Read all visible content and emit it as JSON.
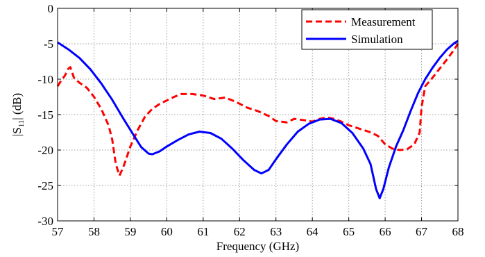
{
  "chart_data": {
    "type": "line",
    "xlabel": "Frequency (GHz)",
    "ylabel_main": "|S",
    "ylabel_sub": "11",
    "ylabel_tail": "| (dB)",
    "xlim": [
      57,
      68
    ],
    "ylim": [
      -30,
      0
    ],
    "xticks": [
      57,
      58,
      59,
      60,
      61,
      62,
      63,
      64,
      65,
      66,
      67,
      68
    ],
    "yticks": [
      0,
      -5,
      -10,
      -15,
      -20,
      -25,
      -30
    ],
    "grid": true,
    "legend_position": "top-right",
    "series": [
      {
        "name": "Measurement",
        "color": "#ff0000",
        "style": "dashed",
        "points": [
          [
            57.0,
            -11.0
          ],
          [
            57.1,
            -10.2
          ],
          [
            57.2,
            -9.5
          ],
          [
            57.3,
            -8.5
          ],
          [
            57.35,
            -8.3
          ],
          [
            57.45,
            -9.8
          ],
          [
            57.6,
            -10.5
          ],
          [
            57.8,
            -11.2
          ],
          [
            58.0,
            -12.5
          ],
          [
            58.2,
            -14.2
          ],
          [
            58.4,
            -16.5
          ],
          [
            58.5,
            -18.5
          ],
          [
            58.6,
            -22.0
          ],
          [
            58.7,
            -23.6
          ],
          [
            58.8,
            -22.5
          ],
          [
            58.9,
            -21.0
          ],
          [
            59.0,
            -19.5
          ],
          [
            59.2,
            -17.2
          ],
          [
            59.4,
            -15.3
          ],
          [
            59.6,
            -14.2
          ],
          [
            59.8,
            -13.5
          ],
          [
            60.0,
            -13.0
          ],
          [
            60.2,
            -12.5
          ],
          [
            60.4,
            -12.1
          ],
          [
            60.7,
            -12.1
          ],
          [
            61.0,
            -12.3
          ],
          [
            61.3,
            -12.8
          ],
          [
            61.6,
            -12.6
          ],
          [
            61.9,
            -13.2
          ],
          [
            62.2,
            -14.0
          ],
          [
            62.5,
            -14.5
          ],
          [
            62.8,
            -15.2
          ],
          [
            63.0,
            -15.9
          ],
          [
            63.3,
            -16.1
          ],
          [
            63.5,
            -15.6
          ],
          [
            63.8,
            -15.8
          ],
          [
            64.0,
            -16.0
          ],
          [
            64.2,
            -15.6
          ],
          [
            64.4,
            -15.4
          ],
          [
            64.6,
            -15.6
          ],
          [
            64.8,
            -16.0
          ],
          [
            65.0,
            -16.5
          ],
          [
            65.3,
            -17.0
          ],
          [
            65.6,
            -17.5
          ],
          [
            65.8,
            -18.0
          ],
          [
            66.0,
            -19.2
          ],
          [
            66.2,
            -19.8
          ],
          [
            66.4,
            -20.0
          ],
          [
            66.6,
            -19.9
          ],
          [
            66.8,
            -19.2
          ],
          [
            66.95,
            -17.5
          ],
          [
            67.0,
            -14.0
          ],
          [
            67.1,
            -11.0
          ],
          [
            67.3,
            -9.8
          ],
          [
            67.5,
            -8.5
          ],
          [
            67.7,
            -7.2
          ],
          [
            67.9,
            -5.8
          ],
          [
            68.0,
            -5.0
          ]
        ]
      },
      {
        "name": "Simulation",
        "color": "#0000ff",
        "style": "solid",
        "points": [
          [
            57.0,
            -4.8
          ],
          [
            57.3,
            -5.8
          ],
          [
            57.6,
            -7.0
          ],
          [
            57.9,
            -8.6
          ],
          [
            58.2,
            -10.6
          ],
          [
            58.5,
            -12.9
          ],
          [
            58.8,
            -15.5
          ],
          [
            59.1,
            -18.0
          ],
          [
            59.3,
            -19.6
          ],
          [
            59.5,
            -20.5
          ],
          [
            59.6,
            -20.6
          ],
          [
            59.8,
            -20.2
          ],
          [
            60.0,
            -19.5
          ],
          [
            60.3,
            -18.6
          ],
          [
            60.6,
            -17.8
          ],
          [
            60.9,
            -17.4
          ],
          [
            61.2,
            -17.6
          ],
          [
            61.5,
            -18.4
          ],
          [
            61.8,
            -19.8
          ],
          [
            62.1,
            -21.4
          ],
          [
            62.4,
            -22.8
          ],
          [
            62.6,
            -23.3
          ],
          [
            62.8,
            -22.8
          ],
          [
            63.0,
            -21.3
          ],
          [
            63.3,
            -19.2
          ],
          [
            63.6,
            -17.4
          ],
          [
            63.9,
            -16.3
          ],
          [
            64.2,
            -15.7
          ],
          [
            64.5,
            -15.6
          ],
          [
            64.8,
            -16.2
          ],
          [
            65.1,
            -17.6
          ],
          [
            65.4,
            -19.8
          ],
          [
            65.6,
            -22.0
          ],
          [
            65.75,
            -25.5
          ],
          [
            65.85,
            -26.8
          ],
          [
            65.95,
            -25.5
          ],
          [
            66.1,
            -22.5
          ],
          [
            66.3,
            -19.5
          ],
          [
            66.5,
            -17.2
          ],
          [
            66.7,
            -14.5
          ],
          [
            66.9,
            -12.0
          ],
          [
            67.1,
            -10.0
          ],
          [
            67.3,
            -8.4
          ],
          [
            67.5,
            -7.0
          ],
          [
            67.7,
            -5.8
          ],
          [
            67.9,
            -4.9
          ],
          [
            68.0,
            -4.6
          ]
        ]
      }
    ]
  }
}
